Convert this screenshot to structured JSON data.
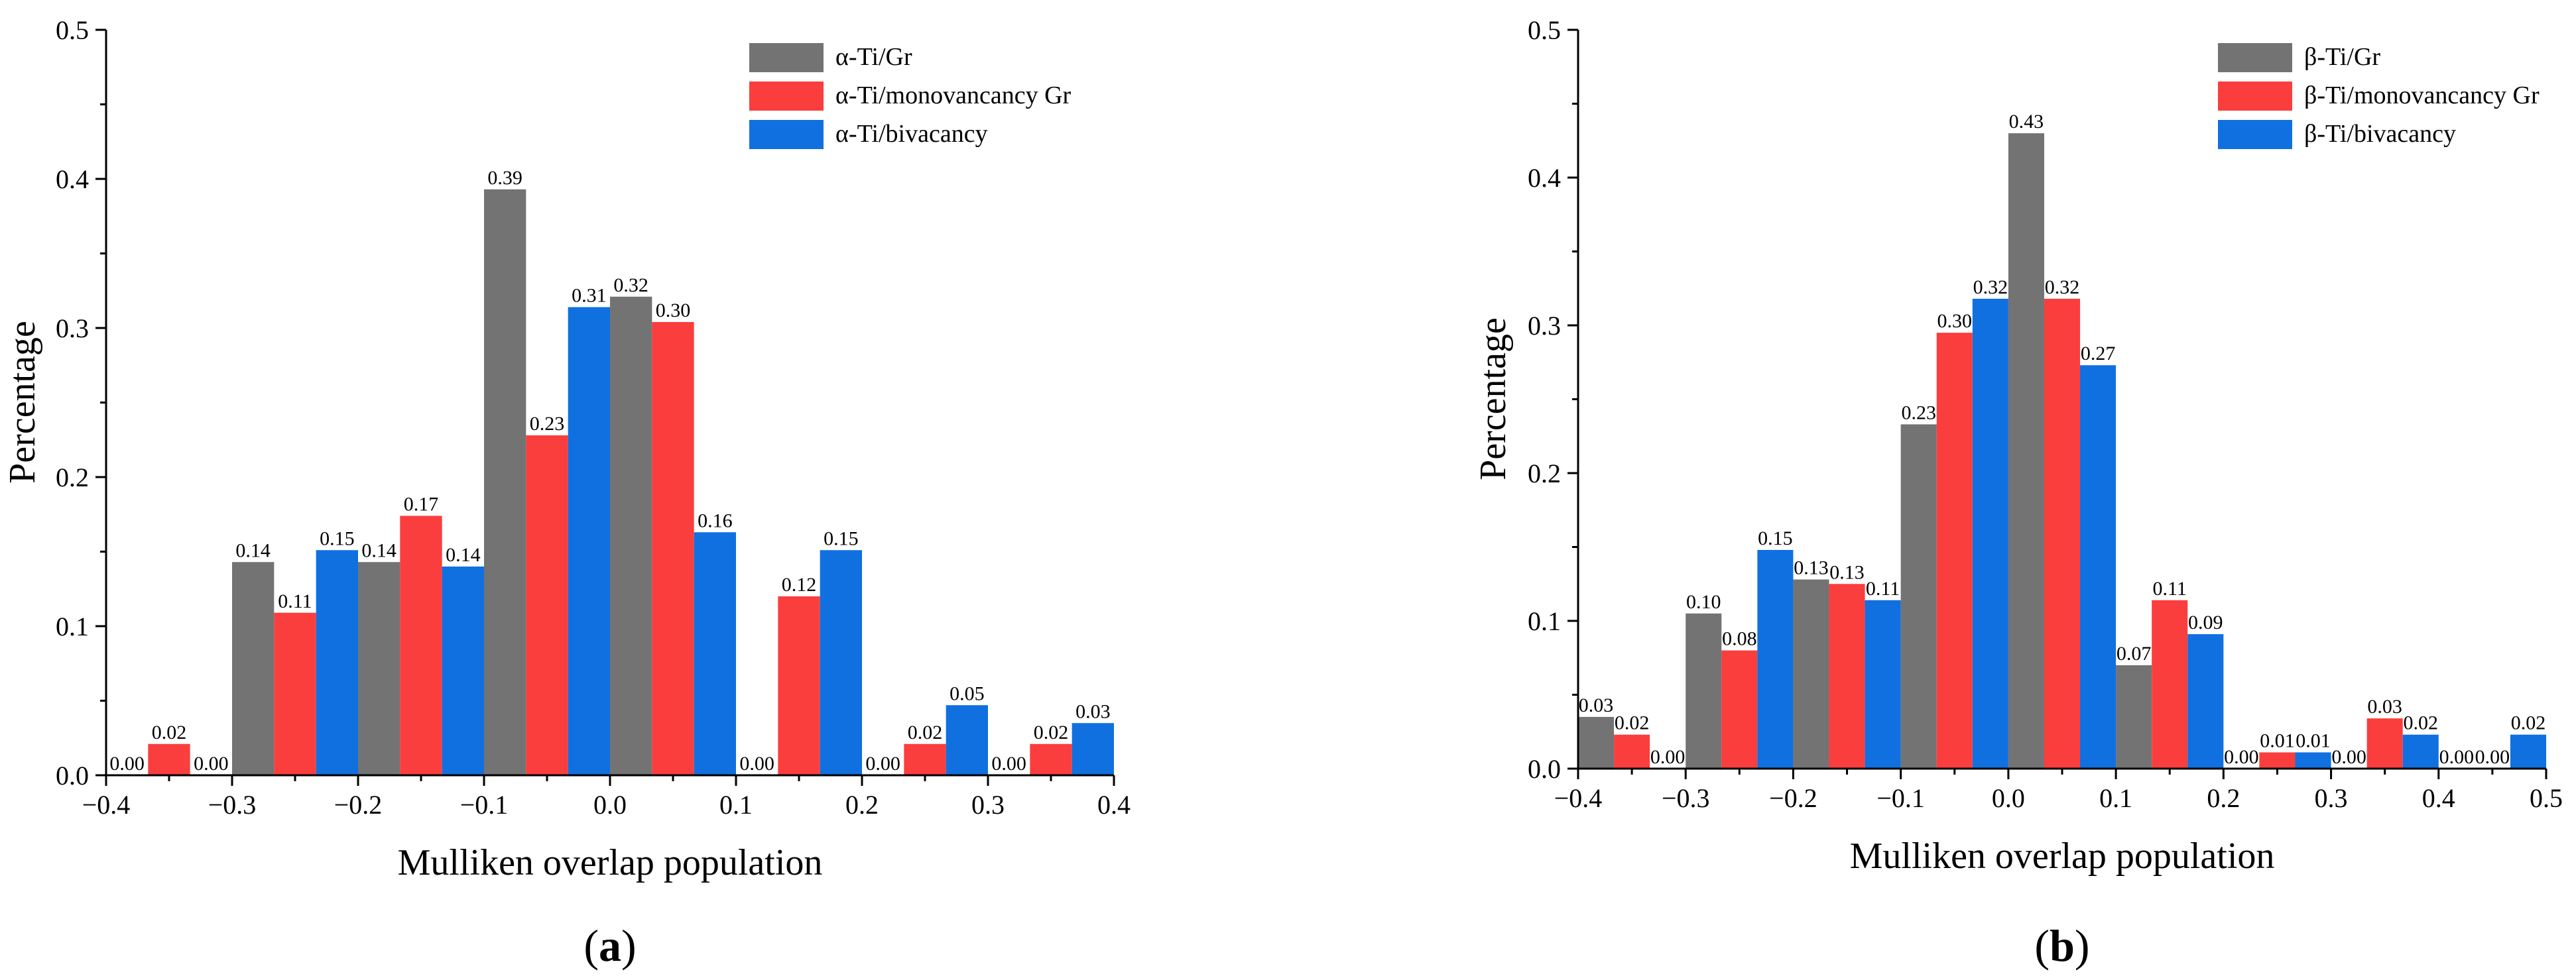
{
  "chart_data": [
    {
      "type": "bar",
      "panel_label": {
        "open": "(",
        "letter": "a",
        "close": ")"
      },
      "xlabel": "Mulliken overlap population",
      "ylabel": "Percentage",
      "xlim": [
        -0.4,
        0.4
      ],
      "ylim": [
        0,
        0.5
      ],
      "xticks": [
        -0.4,
        -0.3,
        -0.2,
        -0.1,
        0.0,
        0.1,
        0.2,
        0.3,
        0.4
      ],
      "xtick_labels": [
        "−0.4",
        "−0.3",
        "−0.2",
        "−0.1",
        "0.0",
        "0.1",
        "0.2",
        "0.3",
        "0.4"
      ],
      "yticks": [
        0,
        0.1,
        0.2,
        0.3,
        0.4,
        0.5
      ],
      "ytick_labels": [
        "0.0",
        "0.1",
        "0.2",
        "0.3",
        "0.4",
        "0.5"
      ],
      "bin_width": 0.1,
      "bin_starts": [
        -0.4,
        -0.3,
        -0.2,
        -0.1,
        0.0,
        0.1,
        0.2,
        0.3
      ],
      "legend_position": "top-right",
      "series": [
        {
          "name": "α-Ti/Gr",
          "color": "#737373",
          "values": [
            0.0,
            0.143,
            0.143,
            0.393,
            0.321,
            0.0,
            0.0,
            0.0
          ],
          "labels": [
            "0.00",
            "0.14",
            "0.14",
            "0.39",
            "0.32",
            "0.00",
            "0.00",
            "0.00"
          ]
        },
        {
          "name": "α-Ti/monovancancy Gr",
          "color": "#fa3e3e",
          "values": [
            0.021,
            0.109,
            0.174,
            0.228,
            0.304,
            0.12,
            0.021,
            0.021
          ],
          "labels": [
            "0.02",
            "0.11",
            "0.17",
            "0.23",
            "0.30",
            "0.12",
            "0.02",
            "0.02"
          ]
        },
        {
          "name": "α-Ti/bivacancy",
          "color": "#1070e0",
          "values": [
            0.0,
            0.151,
            0.14,
            0.314,
            0.163,
            0.151,
            0.047,
            0.035
          ],
          "labels": [
            "0.00",
            "0.15",
            "0.14",
            "0.31",
            "0.16",
            "0.15",
            "0.05",
            "0.03"
          ]
        }
      ]
    },
    {
      "type": "bar",
      "panel_label": {
        "open": "(",
        "letter": "b",
        "close": ")"
      },
      "xlabel": "Mulliken overlap population",
      "ylabel": "Percentage",
      "xlim": [
        -0.4,
        0.5
      ],
      "ylim": [
        0,
        0.5
      ],
      "xticks": [
        -0.4,
        -0.3,
        -0.2,
        -0.1,
        0.0,
        0.1,
        0.2,
        0.3,
        0.4,
        0.5
      ],
      "xtick_labels": [
        "−0.4",
        "−0.3",
        "−0.2",
        "−0.1",
        "0.0",
        "0.1",
        "0.2",
        "0.3",
        "0.4",
        "0.5"
      ],
      "yticks": [
        0,
        0.1,
        0.2,
        0.3,
        0.4,
        0.5
      ],
      "ytick_labels": [
        "0.0",
        "0.1",
        "0.2",
        "0.3",
        "0.4",
        "0.5"
      ],
      "bin_width": 0.1,
      "bin_starts": [
        -0.4,
        -0.3,
        -0.2,
        -0.1,
        0.0,
        0.1,
        0.2,
        0.3,
        0.4
      ],
      "legend_position": "top-right",
      "series": [
        {
          "name": "β-Ti/Gr",
          "color": "#737373",
          "values": [
            0.035,
            0.105,
            0.128,
            0.233,
            0.43,
            0.07,
            0.0,
            0.0,
            0.0
          ],
          "labels": [
            "0.03",
            "0.10",
            "0.13",
            "0.23",
            "0.43",
            "0.07",
            "0.00",
            "0.00",
            "0.00"
          ]
        },
        {
          "name": "β-Ti/monovancancy Gr",
          "color": "#fa3e3e",
          "values": [
            0.023,
            0.08,
            0.125,
            0.295,
            0.318,
            0.114,
            0.011,
            0.034,
            0.0
          ],
          "labels": [
            "0.02",
            "0.08",
            "0.13",
            "0.30",
            "0.32",
            "0.11",
            "0.01",
            "0.03",
            "0.00"
          ]
        },
        {
          "name": "β-Ti/bivacancy",
          "color": "#1070e0",
          "values": [
            0.0,
            0.148,
            0.114,
            0.318,
            0.273,
            0.091,
            0.011,
            0.023,
            0.023
          ],
          "labels": [
            "0.00",
            "0.15",
            "0.11",
            "0.32",
            "0.27",
            "0.09",
            "0.01",
            "0.02",
            "0.02"
          ]
        }
      ]
    }
  ]
}
